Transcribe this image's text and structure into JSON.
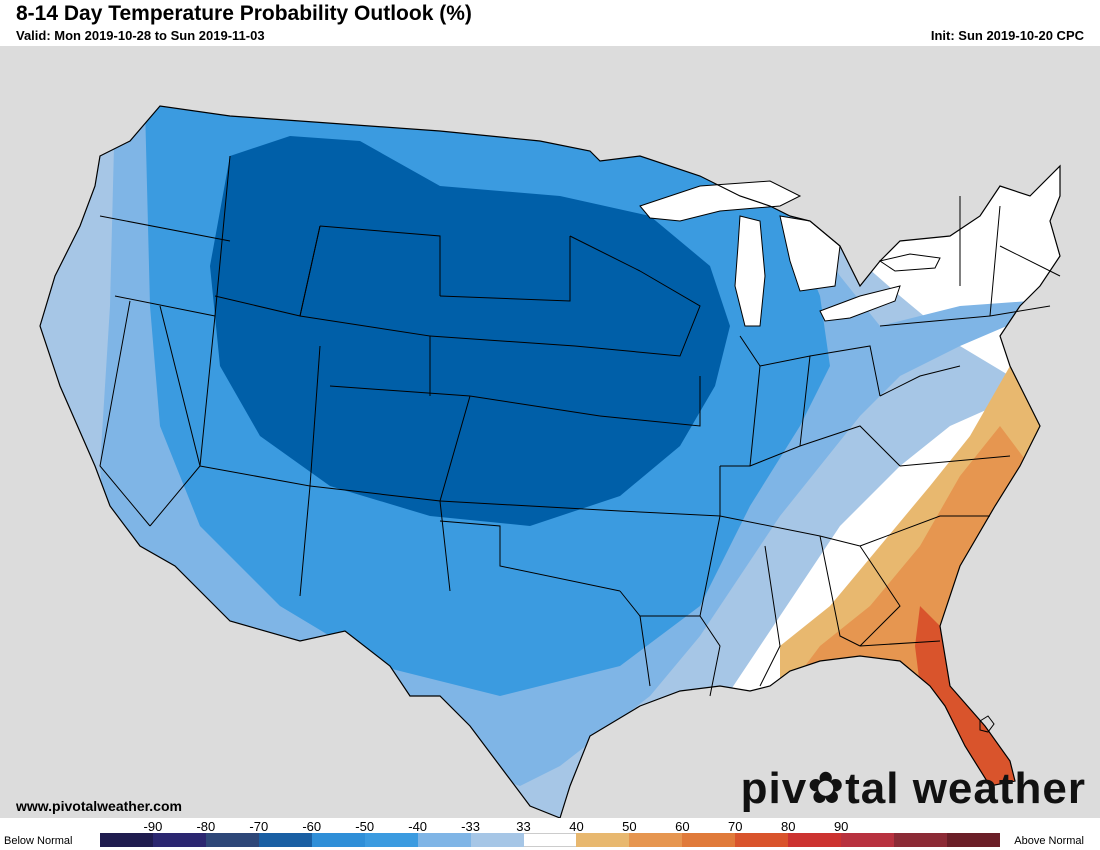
{
  "header": {
    "title": "8-14 Day Temperature Probability Outlook (%)",
    "valid": "Valid: Mon 2019-10-28 to Sun 2019-11-03",
    "init": "Init: Sun 2019-10-20 CPC"
  },
  "footer": {
    "website": "www.pivotalweather.com",
    "brand_pre": "piv",
    "brand_gear": "✿",
    "brand_post": "tal weather"
  },
  "legend": {
    "below_label": "Below Normal",
    "above_label": "Above Normal",
    "ticks": [
      "-90",
      "-80",
      "-70",
      "-60",
      "-50",
      "-40",
      "-33",
      "33",
      "40",
      "50",
      "60",
      "70",
      "80",
      "90"
    ],
    "colors": [
      "#1f1c4f",
      "#2b2770",
      "#2e4778",
      "#1a5fa3",
      "#2f8fd8",
      "#3b9be0",
      "#7fb5e6",
      "#a6c6e6",
      "#ffffff",
      "#e8b86f",
      "#e69650",
      "#e07a3a",
      "#d9542c",
      "#cc3330",
      "#b8323f",
      "#8c2b36",
      "#6b1f28"
    ]
  },
  "map_colors": {
    "land": "#ffffff",
    "ocean": "#dcdcdc",
    "lake": "#ffffff",
    "b33_40": "#a6c6e6",
    "b40_50": "#7fb5e6",
    "b50_60": "#3b9be0",
    "b60_70": "#005fa8",
    "a33_40": "#e8b86f",
    "a40_50": "#e69650",
    "a50_60": "#d9542c"
  }
}
